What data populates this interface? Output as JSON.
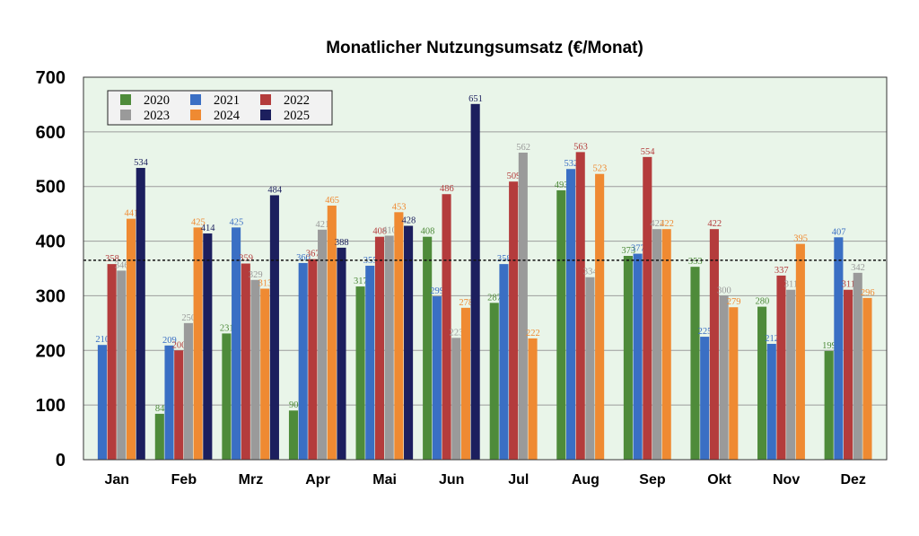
{
  "chart_data": {
    "type": "bar",
    "title": "Monatlicher Nutzungsumsatz (€/Monat)",
    "xlabel": "",
    "ylabel": "",
    "ylim": [
      0,
      700
    ],
    "yticks": [
      0,
      100,
      200,
      300,
      400,
      500,
      600,
      700
    ],
    "grid": "horizontal",
    "legend_position": "top-left",
    "reference_line": 365,
    "plot_background": "#e9f5e9",
    "categories": [
      "Jan",
      "Feb",
      "Mrz",
      "Apr",
      "Mai",
      "Jun",
      "Jul",
      "Aug",
      "Sep",
      "Okt",
      "Nov",
      "Dez"
    ],
    "series": [
      {
        "name": "2020",
        "color": "#4e8b3a",
        "values": [
          null,
          84,
          231,
          90,
          317,
          408,
          287,
          493,
          373,
          353,
          280,
          199
        ]
      },
      {
        "name": "2021",
        "color": "#3a6fc4",
        "values": [
          210,
          209,
          425,
          360,
          355,
          299,
          358,
          532,
          377,
          225,
          212,
          407
        ]
      },
      {
        "name": "2022",
        "color": "#b43c3c",
        "values": [
          358,
          200,
          359,
          367,
          408,
          486,
          509,
          563,
          554,
          422,
          337,
          311
        ]
      },
      {
        "name": "2023",
        "color": "#9a9a9a",
        "values": [
          346,
          250,
          329,
          421,
          410,
          223,
          562,
          334,
          422,
          300,
          311,
          342
        ]
      },
      {
        "name": "2024",
        "color": "#ef8a32",
        "values": [
          441,
          425,
          313,
          465,
          453,
          278,
          222,
          523,
          422,
          279,
          395,
          296
        ]
      },
      {
        "name": "2025",
        "color": "#1c1f5e",
        "values": [
          534,
          414,
          484,
          388,
          428,
          651,
          null,
          null,
          null,
          null,
          null,
          null
        ]
      }
    ]
  }
}
